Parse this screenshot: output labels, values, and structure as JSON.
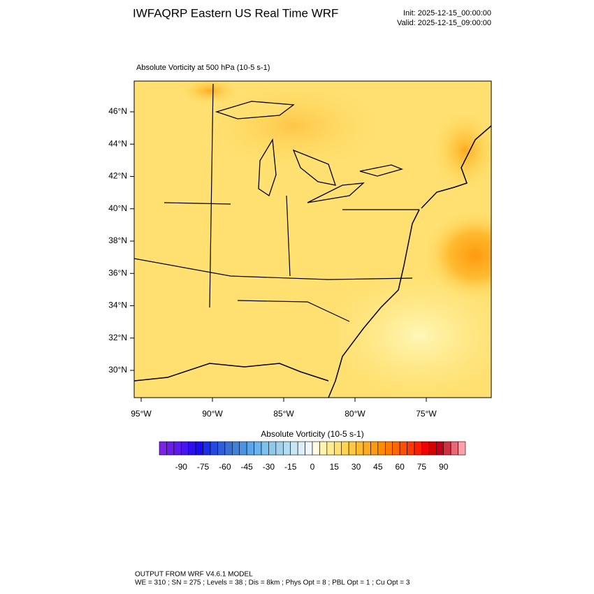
{
  "header": {
    "title": "IWFAQRP Eastern US Real Time WRF",
    "init": "Init: 2025-12-15_00:00:00",
    "valid": "Valid: 2025-12-15_09:00:00"
  },
  "map": {
    "subtitle": "Absolute Vorticity at 500 hPa   (10-5 s-1)",
    "lat_labels": [
      "46°N",
      "44°N",
      "42°N",
      "40°N",
      "38°N",
      "36°N",
      "34°N",
      "32°N",
      "30°N"
    ],
    "lon_labels": [
      "95°W",
      "90°W",
      "85°W",
      "80°W",
      "75°W"
    ]
  },
  "colorbar": {
    "title": "Absolute Vorticity  (10-5 s-1)",
    "labels": [
      -90,
      -75,
      -60,
      -45,
      -30,
      -15,
      0,
      15,
      30,
      45,
      60,
      75,
      90
    ],
    "colors": [
      "#7b22e6",
      "#6a1ee8",
      "#5a1aea",
      "#4616ec",
      "#2a10ee",
      "#1a0cf0",
      "#1a2fe8",
      "#2448e0",
      "#2f5ed8",
      "#3a6fd4",
      "#3f82dc",
      "#4a94e2",
      "#5aa6e8",
      "#6ab4ec",
      "#7cc0ee",
      "#8ec8ea",
      "#a0d0ea",
      "#b4dcf0",
      "#c8e6f4",
      "#dceff8",
      "#f0f8fc",
      "#fffbe0",
      "#fff3b0",
      "#ffeb90",
      "#ffe070",
      "#ffd450",
      "#ffc840",
      "#ffbb30",
      "#ffab20",
      "#ff9a10",
      "#ff8c00",
      "#ff7a00",
      "#ff6600",
      "#ff5000",
      "#ff3a00",
      "#ff1e00",
      "#f00000",
      "#d80000",
      "#c00018",
      "#d03040",
      "#e86878",
      "#ffa0a8"
    ]
  },
  "footer": {
    "line1": "OUTPUT FROM WRF V4.6.1 MODEL",
    "line2": "WE = 310 ; SN = 275 ; Levels = 38 ; Dis = 8km ; Phys Opt = 8 ; PBL Opt = 1 ; Cu Opt = 3"
  }
}
